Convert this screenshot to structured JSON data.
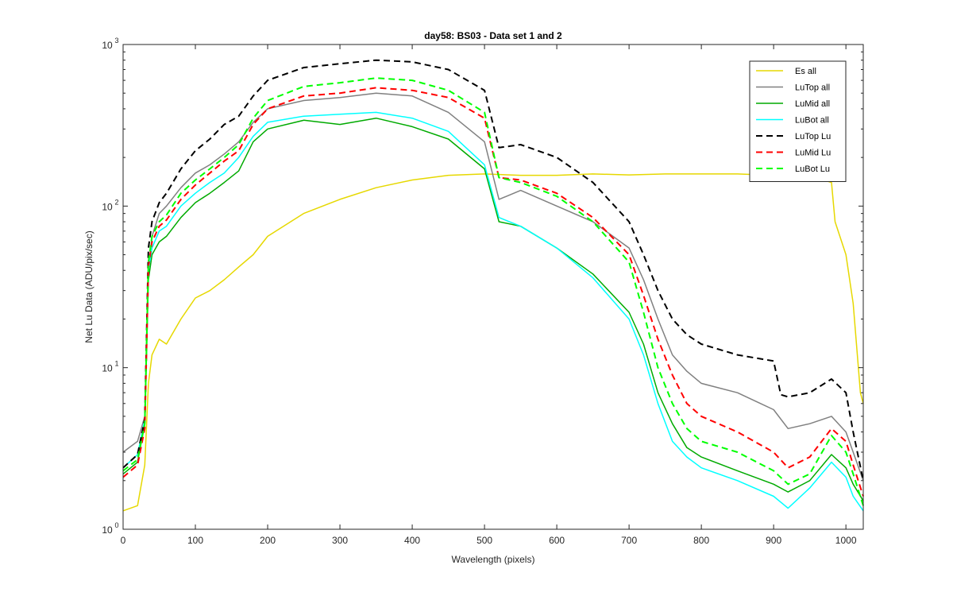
{
  "chart_data": {
    "type": "line",
    "title": "day58: BS03 - Data set 1 and 2",
    "xlabel": "Wavelength (pixels)",
    "ylabel": "Net Lu Data (ADU/pix/sec)",
    "xlim": [
      0,
      1024
    ],
    "ylim": [
      1,
      1000
    ],
    "yscale": "log",
    "x_ticks": [
      0,
      100,
      200,
      300,
      400,
      500,
      600,
      700,
      800,
      900,
      1000
    ],
    "y_ticks": [
      {
        "value": 1,
        "base": "10",
        "exp": "0"
      },
      {
        "value": 10,
        "base": "10",
        "exp": "1"
      },
      {
        "value": 100,
        "base": "10",
        "exp": "2"
      },
      {
        "value": 1000,
        "base": "10",
        "exp": "3"
      }
    ],
    "legend_position": "top-right",
    "series": [
      {
        "name": "Es  all",
        "color": "#e6d800",
        "dash": "solid",
        "x": [
          0,
          20,
          30,
          35,
          40,
          50,
          60,
          80,
          100,
          120,
          140,
          160,
          180,
          200,
          250,
          300,
          350,
          400,
          450,
          500,
          550,
          600,
          650,
          700,
          750,
          800,
          850,
          900,
          950,
          980,
          985,
          1000,
          1010,
          1020,
          1024
        ],
        "y": [
          1.3,
          1.4,
          2.5,
          8,
          12,
          15,
          14,
          20,
          27,
          30,
          35,
          42,
          50,
          65,
          90,
          110,
          130,
          145,
          155,
          158,
          155,
          155,
          158,
          156,
          158,
          158,
          158,
          155,
          155,
          140,
          80,
          50,
          25,
          7,
          6
        ]
      },
      {
        "name": "LuTop  all",
        "color": "#808080",
        "dash": "solid",
        "x": [
          0,
          20,
          30,
          35,
          40,
          50,
          60,
          80,
          100,
          120,
          140,
          160,
          180,
          200,
          250,
          300,
          350,
          400,
          450,
          500,
          520,
          550,
          600,
          650,
          700,
          720,
          740,
          760,
          780,
          800,
          850,
          900,
          920,
          950,
          980,
          1000,
          1010,
          1024
        ],
        "y": [
          3,
          3.5,
          5,
          40,
          65,
          90,
          100,
          130,
          160,
          180,
          210,
          250,
          330,
          400,
          450,
          470,
          500,
          480,
          380,
          250,
          110,
          125,
          100,
          80,
          55,
          35,
          20,
          12,
          9.5,
          8,
          7,
          5.5,
          4.2,
          4.5,
          5,
          4,
          3,
          2
        ]
      },
      {
        "name": "LuMid  all",
        "color": "#00aa00",
        "dash": "solid",
        "x": [
          0,
          20,
          30,
          35,
          40,
          50,
          60,
          80,
          100,
          120,
          140,
          160,
          180,
          200,
          250,
          300,
          350,
          400,
          450,
          500,
          520,
          550,
          600,
          650,
          700,
          720,
          740,
          760,
          780,
          800,
          850,
          900,
          920,
          950,
          980,
          1000,
          1010,
          1024
        ],
        "y": [
          2.2,
          2.6,
          4.5,
          35,
          50,
          60,
          65,
          85,
          105,
          120,
          140,
          165,
          250,
          300,
          340,
          320,
          350,
          310,
          260,
          170,
          80,
          75,
          55,
          38,
          22,
          14,
          7,
          4.5,
          3.2,
          2.8,
          2.3,
          1.9,
          1.7,
          2,
          2.9,
          2.4,
          1.9,
          1.5
        ]
      },
      {
        "name": "LuBot  all",
        "color": "#00ffff",
        "dash": "solid",
        "x": [
          0,
          20,
          30,
          35,
          40,
          50,
          60,
          80,
          100,
          120,
          140,
          160,
          180,
          200,
          250,
          300,
          350,
          400,
          450,
          500,
          520,
          550,
          600,
          650,
          700,
          720,
          740,
          760,
          780,
          800,
          850,
          900,
          920,
          950,
          980,
          1000,
          1010,
          1024
        ],
        "y": [
          2.4,
          2.9,
          4.8,
          40,
          55,
          70,
          75,
          100,
          120,
          140,
          160,
          200,
          270,
          330,
          360,
          370,
          380,
          350,
          290,
          180,
          85,
          75,
          55,
          36,
          20,
          12,
          6,
          3.5,
          2.8,
          2.4,
          2,
          1.6,
          1.35,
          1.8,
          2.6,
          2.1,
          1.6,
          1.3
        ]
      },
      {
        "name": "LuTop  Lu",
        "color": "#000000",
        "dash": "dashed",
        "x": [
          0,
          20,
          30,
          35,
          40,
          50,
          60,
          80,
          100,
          120,
          140,
          160,
          180,
          200,
          250,
          300,
          350,
          400,
          450,
          500,
          520,
          550,
          600,
          650,
          700,
          720,
          740,
          760,
          780,
          800,
          850,
          900,
          910,
          920,
          950,
          980,
          1000,
          1010,
          1024
        ],
        "y": [
          2.4,
          2.9,
          4.8,
          55,
          80,
          105,
          120,
          170,
          220,
          260,
          320,
          360,
          480,
          600,
          720,
          760,
          800,
          780,
          700,
          520,
          230,
          240,
          200,
          140,
          80,
          50,
          30,
          20,
          16,
          14,
          12,
          11,
          6.8,
          6.6,
          7,
          8.5,
          7,
          4,
          2
        ]
      },
      {
        "name": "LuMid  Lu",
        "color": "#ff0000",
        "dash": "dashed",
        "x": [
          0,
          20,
          30,
          35,
          40,
          50,
          60,
          80,
          100,
          120,
          140,
          160,
          180,
          200,
          250,
          300,
          350,
          400,
          450,
          500,
          520,
          550,
          600,
          650,
          700,
          720,
          740,
          760,
          780,
          800,
          850,
          900,
          920,
          950,
          980,
          1000,
          1010,
          1024
        ],
        "y": [
          2.1,
          2.5,
          4.2,
          42,
          60,
          75,
          82,
          110,
          135,
          160,
          190,
          220,
          320,
          400,
          480,
          500,
          540,
          520,
          470,
          350,
          150,
          145,
          120,
          85,
          50,
          28,
          15,
          9,
          6,
          5,
          4,
          3,
          2.4,
          2.8,
          4.2,
          3.5,
          2.5,
          1.6
        ]
      },
      {
        "name": "LuBot  Lu",
        "color": "#00ff00",
        "dash": "dashed",
        "x": [
          0,
          20,
          30,
          35,
          40,
          50,
          60,
          80,
          100,
          120,
          140,
          160,
          180,
          200,
          250,
          300,
          350,
          400,
          450,
          500,
          520,
          550,
          600,
          650,
          700,
          720,
          740,
          760,
          780,
          800,
          850,
          900,
          920,
          950,
          980,
          1000,
          1010,
          1024
        ],
        "y": [
          2.3,
          2.7,
          4.5,
          45,
          65,
          80,
          88,
          120,
          145,
          170,
          200,
          240,
          350,
          450,
          550,
          580,
          620,
          600,
          520,
          380,
          150,
          140,
          115,
          80,
          45,
          22,
          10,
          6,
          4.2,
          3.5,
          3,
          2.3,
          1.9,
          2.2,
          3.8,
          3,
          2.2,
          1.4
        ]
      }
    ]
  }
}
